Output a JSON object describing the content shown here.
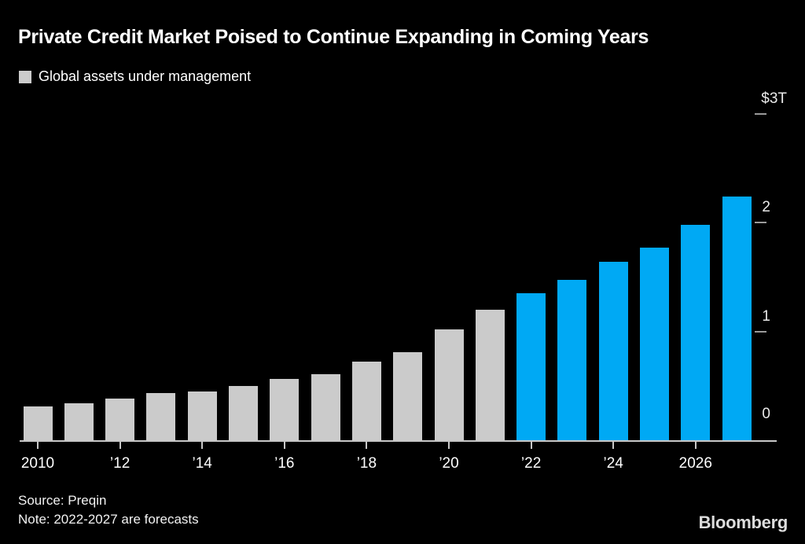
{
  "header": {
    "title": "Private Credit Market Poised to Continue Expanding in Coming Years"
  },
  "legend": {
    "label": "Global assets under management"
  },
  "chart_data": {
    "type": "bar",
    "title": "Private Credit Market Poised to Continue Expanding in Coming Years",
    "series_label": "Global assets under management",
    "unit": "USD trillions",
    "categories": [
      "2010",
      "2011",
      "2012",
      "2013",
      "2014",
      "2015",
      "2016",
      "2017",
      "2018",
      "2019",
      "2020",
      "2021",
      "2022",
      "2023",
      "2024",
      "2025",
      "2026",
      "2027"
    ],
    "values": [
      0.31,
      0.34,
      0.38,
      0.43,
      0.45,
      0.5,
      0.56,
      0.61,
      0.72,
      0.81,
      1.02,
      1.2,
      1.35,
      1.47,
      1.64,
      1.77,
      1.98,
      2.24
    ],
    "forecast_from": 2022,
    "ylim": [
      0,
      3
    ],
    "grid": false,
    "legend_position": "top-left",
    "yticks": [
      {
        "label": "0",
        "value": 0,
        "dash": false
      },
      {
        "label": "1",
        "value": 1,
        "dash": true
      },
      {
        "label": "2",
        "value": 2,
        "dash": true
      },
      {
        "label": "$3T",
        "value": 3,
        "dash": true
      }
    ],
    "xticks": [
      {
        "label": "2010",
        "year": 2010
      },
      {
        "label": "’12",
        "year": 2012
      },
      {
        "label": "’14",
        "year": 2014
      },
      {
        "label": "’16",
        "year": 2016
      },
      {
        "label": "’18",
        "year": 2018
      },
      {
        "label": "’20",
        "year": 2020
      },
      {
        "label": "’22",
        "year": 2022
      },
      {
        "label": "’24",
        "year": 2024
      },
      {
        "label": "2026",
        "year": 2026
      }
    ],
    "colors": {
      "historical": "#cbcbcb",
      "forecast": "#00a9f4",
      "axis": "#c8c8c8",
      "background": "#000000"
    }
  },
  "footer": {
    "source": "Source: Preqin",
    "note": "Note: 2022-2027 are forecasts",
    "brand": "Bloomberg"
  }
}
